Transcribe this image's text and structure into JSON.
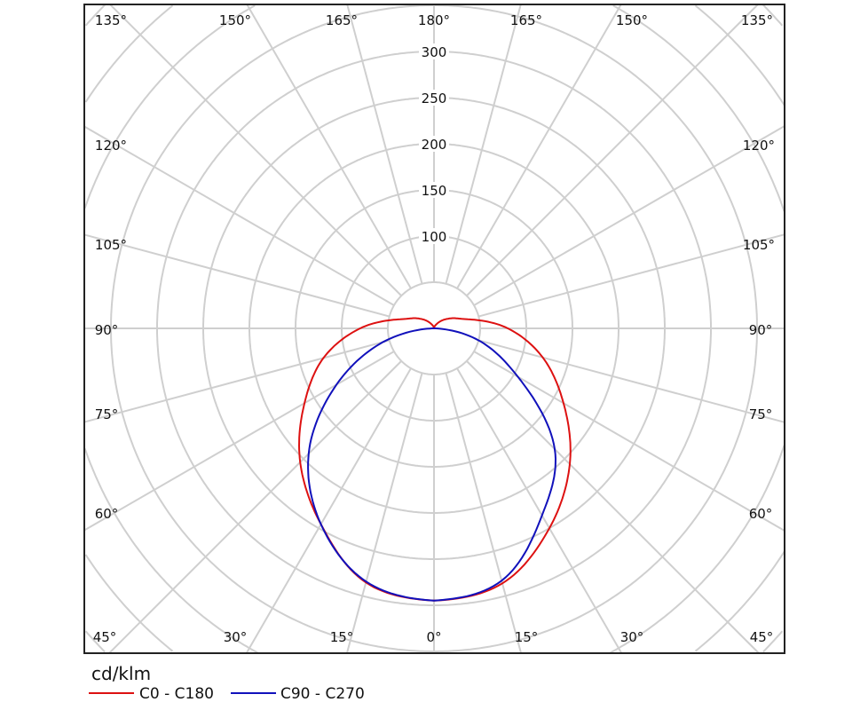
{
  "chart_data": {
    "type": "polar",
    "unit_label": "cd/klm",
    "radial_ticks": [
      100,
      150,
      200,
      250,
      300
    ],
    "radial_tick_labels": [
      "100",
      "150",
      "200",
      "250",
      "300"
    ],
    "ring_step": 50,
    "angle_step_deg": 15,
    "grid": true,
    "legend_placement": "bottom-left",
    "angle_labels": {
      "top": [
        "135°",
        "150°",
        "165°",
        "180°",
        "165°",
        "150°",
        "135°"
      ],
      "bottom": [
        "45°",
        "30°",
        "15°",
        "0°",
        "15°",
        "30°",
        "45°"
      ],
      "left": [
        "120°",
        "105°",
        "90°",
        "75°",
        "60°"
      ],
      "right": [
        "120°",
        "105°",
        "90°",
        "75°",
        "60°"
      ]
    },
    "angles_deg": [
      0,
      15,
      30,
      45,
      60,
      75,
      90,
      105,
      120,
      135,
      150,
      165,
      180
    ],
    "series": [
      {
        "name": "C0 - C180",
        "color": "#dd1111",
        "right_values": [
          295,
          286,
          250,
          208,
          162,
          122,
          80,
          38,
          22,
          12,
          5,
          2,
          0
        ],
        "left_values": [
          295,
          285,
          245,
          205,
          162,
          124,
          80,
          38,
          22,
          12,
          5,
          2,
          0
        ]
      },
      {
        "name": "C90 - C270",
        "color": "#1111bb",
        "right_values": [
          295,
          283,
          234,
          185,
          105,
          50,
          0,
          0,
          0,
          0,
          0,
          0,
          0
        ],
        "left_values": [
          295,
          284,
          245,
          192,
          122,
          57,
          0,
          0,
          0,
          0,
          0,
          0,
          0
        ]
      }
    ]
  }
}
